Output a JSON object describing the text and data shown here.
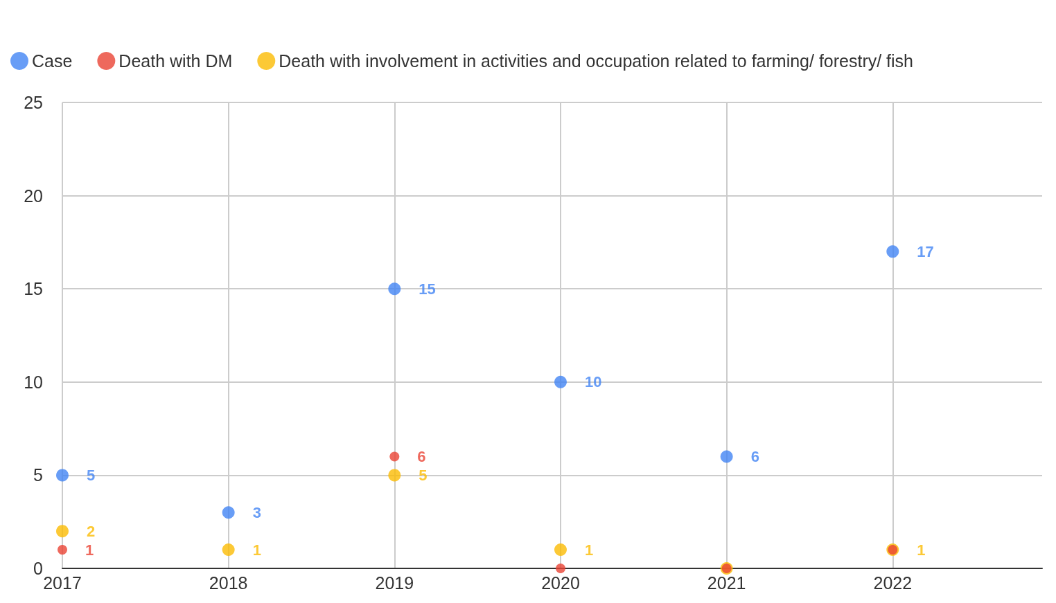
{
  "chart_data": {
    "type": "scatter",
    "x": [
      2017,
      2018,
      2019,
      2020,
      2021,
      2022
    ],
    "series": [
      {
        "name": "Case",
        "color": "#4285f4",
        "values": [
          5,
          3,
          15,
          10,
          6,
          17
        ],
        "value_labels": [
          "5",
          "3",
          "15",
          "10",
          "6",
          "17"
        ]
      },
      {
        "name": "Death with DM",
        "color": "#ea4335",
        "values": [
          1,
          null,
          6,
          0,
          0,
          1
        ],
        "value_labels": [
          "1",
          null,
          "6",
          null,
          null,
          null
        ]
      },
      {
        "name": "Death with involvement in activities and occupation related to farming/ forestry/ fish",
        "color": "#fbbc04",
        "values": [
          2,
          1,
          5,
          1,
          0,
          1
        ],
        "value_labels": [
          "2",
          "1",
          "5",
          "1",
          null,
          "1"
        ]
      }
    ],
    "xlim": [
      2017,
      2022.9
    ],
    "xticks": [
      2017,
      2018,
      2019,
      2020,
      2021,
      2022
    ],
    "ylim": [
      0,
      25
    ],
    "yticks": [
      0,
      5,
      10,
      15,
      20,
      25
    ],
    "grid": true,
    "legend": "top left",
    "marker": "circle"
  }
}
